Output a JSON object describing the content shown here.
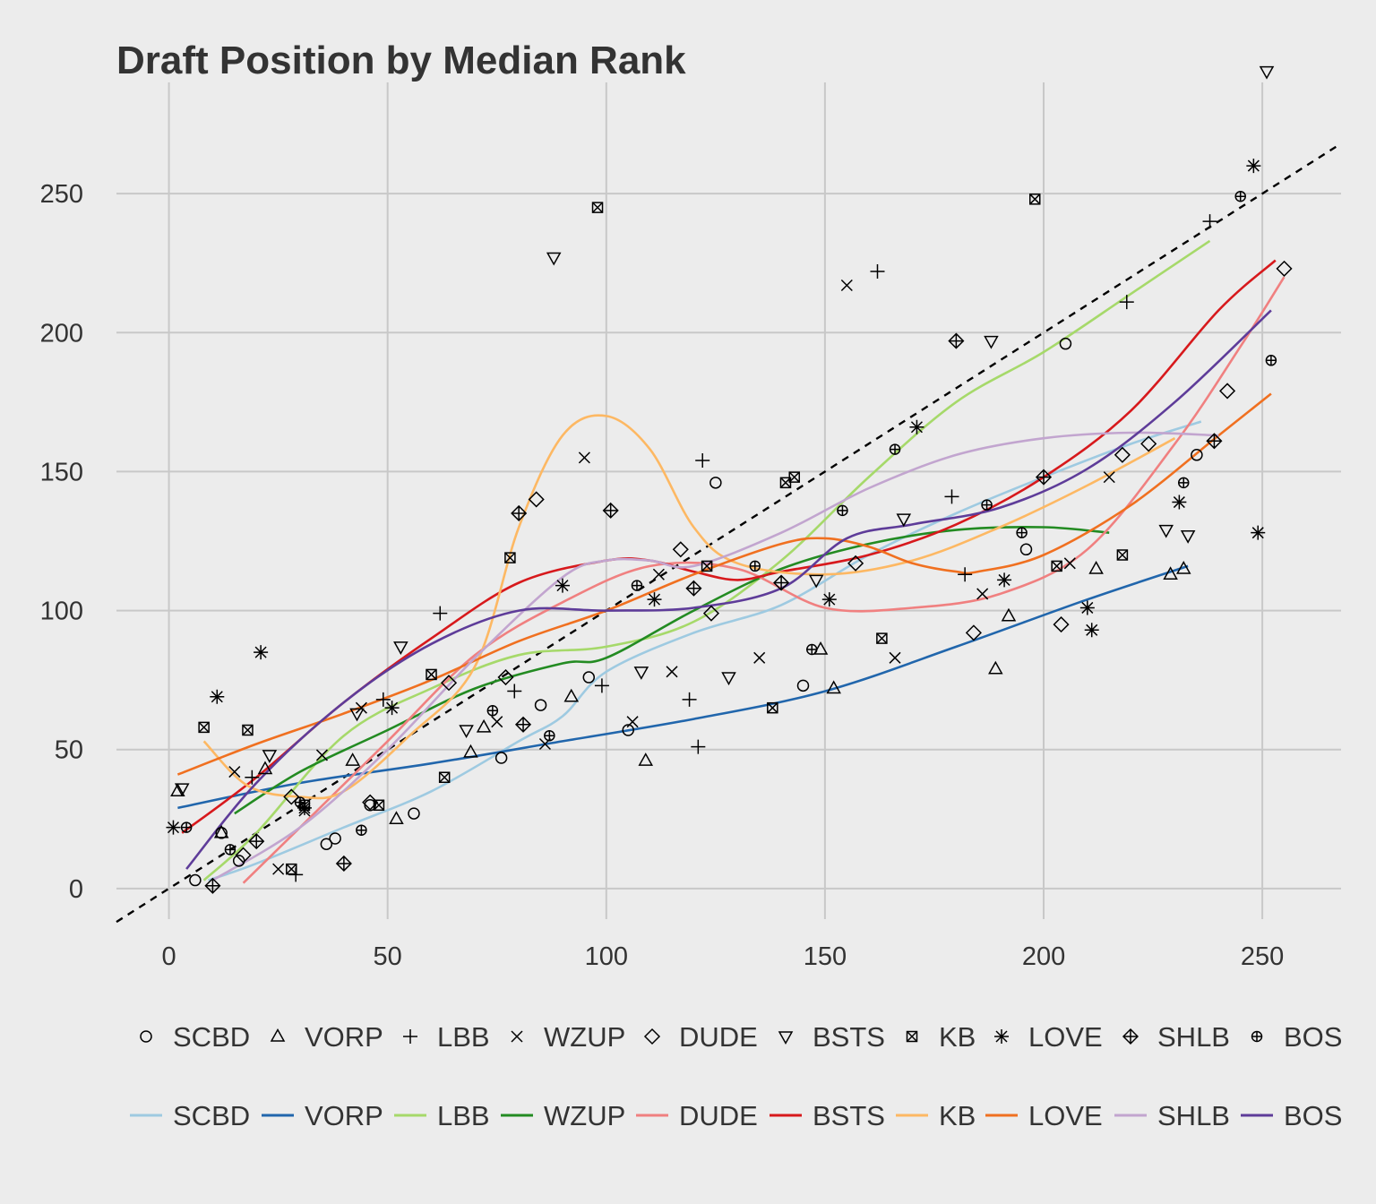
{
  "chart_data": {
    "type": "scatter",
    "title": "Draft Position by Median Rank",
    "xlabel": "",
    "ylabel": "",
    "xlim": [
      -12,
      268
    ],
    "ylim": [
      -11,
      290
    ],
    "x_ticks": [
      0,
      50,
      100,
      150,
      200,
      250
    ],
    "y_ticks": [
      0,
      50,
      100,
      150,
      200,
      250
    ],
    "grid": true,
    "legend_position": "bottom",
    "reference_line": {
      "style": "dashed",
      "color": "#000000",
      "slope": 1,
      "intercept": 0
    },
    "series": [
      {
        "name": "SCBD",
        "marker": "circle",
        "line_color": "#9ecae1",
        "points": [
          [
            6,
            3
          ],
          [
            12,
            20
          ],
          [
            16,
            10
          ],
          [
            36,
            16
          ],
          [
            38,
            18
          ],
          [
            46,
            30
          ],
          [
            56,
            27
          ],
          [
            76,
            47
          ],
          [
            85,
            66
          ],
          [
            96,
            76
          ],
          [
            105,
            57
          ],
          [
            125,
            146
          ],
          [
            145,
            73
          ],
          [
            196,
            122
          ],
          [
            205,
            196
          ],
          [
            235,
            156
          ]
        ],
        "smooth": [
          [
            9,
            3
          ],
          [
            20,
            9
          ],
          [
            40,
            22
          ],
          [
            60,
            35
          ],
          [
            80,
            53
          ],
          [
            90,
            62
          ],
          [
            100,
            78
          ],
          [
            120,
            92
          ],
          [
            140,
            102
          ],
          [
            160,
            120
          ],
          [
            180,
            135
          ],
          [
            200,
            148
          ],
          [
            220,
            160
          ],
          [
            236,
            168
          ]
        ]
      },
      {
        "name": "VORP",
        "marker": "triangle",
        "line_color": "#2166ac",
        "points": [
          [
            2,
            35
          ],
          [
            12,
            20
          ],
          [
            22,
            43
          ],
          [
            42,
            46
          ],
          [
            52,
            25
          ],
          [
            69,
            49
          ],
          [
            72,
            58
          ],
          [
            92,
            69
          ],
          [
            109,
            46
          ],
          [
            149,
            86
          ],
          [
            152,
            72
          ],
          [
            189,
            79
          ],
          [
            192,
            98
          ],
          [
            212,
            115
          ],
          [
            229,
            113
          ],
          [
            232,
            115
          ]
        ],
        "smooth": [
          [
            2,
            29
          ],
          [
            30,
            38
          ],
          [
            60,
            45
          ],
          [
            90,
            53
          ],
          [
            120,
            61
          ],
          [
            150,
            71
          ],
          [
            180,
            87
          ],
          [
            210,
            104
          ],
          [
            233,
            116
          ]
        ]
      },
      {
        "name": "LBB",
        "marker": "plus",
        "line_color": "#a6d96a",
        "points": [
          [
            19,
            40
          ],
          [
            29,
            5
          ],
          [
            49,
            68
          ],
          [
            62,
            99
          ],
          [
            79,
            71
          ],
          [
            99,
            73
          ],
          [
            119,
            68
          ],
          [
            121,
            51
          ],
          [
            122,
            154
          ],
          [
            162,
            222
          ],
          [
            179,
            141
          ],
          [
            182,
            113
          ],
          [
            219,
            211
          ],
          [
            238,
            240
          ]
        ],
        "smooth": [
          [
            8,
            3
          ],
          [
            20,
            20
          ],
          [
            40,
            55
          ],
          [
            60,
            72
          ],
          [
            80,
            84
          ],
          [
            100,
            87
          ],
          [
            120,
            96
          ],
          [
            140,
            118
          ],
          [
            160,
            148
          ],
          [
            180,
            175
          ],
          [
            200,
            193
          ],
          [
            220,
            214
          ],
          [
            238,
            233
          ]
        ]
      },
      {
        "name": "WZUP",
        "marker": "x",
        "line_color": "#238b22",
        "points": [
          [
            15,
            42
          ],
          [
            25,
            7
          ],
          [
            31,
            28
          ],
          [
            35,
            48
          ],
          [
            44,
            65
          ],
          [
            75,
            60
          ],
          [
            86,
            52
          ],
          [
            95,
            155
          ],
          [
            106,
            60
          ],
          [
            112,
            113
          ],
          [
            115,
            78
          ],
          [
            135,
            83
          ],
          [
            155,
            217
          ],
          [
            166,
            83
          ],
          [
            186,
            106
          ],
          [
            206,
            117
          ],
          [
            215,
            148
          ]
        ],
        "smooth": [
          [
            15,
            27
          ],
          [
            30,
            42
          ],
          [
            50,
            57
          ],
          [
            70,
            72
          ],
          [
            90,
            81
          ],
          [
            100,
            83
          ],
          [
            120,
            100
          ],
          [
            140,
            115
          ],
          [
            160,
            124
          ],
          [
            180,
            129
          ],
          [
            200,
            130
          ],
          [
            215,
            128
          ]
        ]
      },
      {
        "name": "DUDE",
        "marker": "diamond",
        "line_color": "#f08080",
        "points": [
          [
            17,
            12
          ],
          [
            28,
            33
          ],
          [
            46,
            31
          ],
          [
            64,
            74
          ],
          [
            77,
            76
          ],
          [
            84,
            140
          ],
          [
            117,
            122
          ],
          [
            124,
            99
          ],
          [
            157,
            117
          ],
          [
            184,
            92
          ],
          [
            204,
            95
          ],
          [
            218,
            156
          ],
          [
            224,
            160
          ],
          [
            242,
            179
          ],
          [
            255,
            223
          ]
        ],
        "smooth": [
          [
            17,
            2
          ],
          [
            30,
            22
          ],
          [
            50,
            53
          ],
          [
            70,
            84
          ],
          [
            90,
            103
          ],
          [
            110,
            116
          ],
          [
            130,
            115
          ],
          [
            150,
            101
          ],
          [
            170,
            101
          ],
          [
            190,
            106
          ],
          [
            210,
            122
          ],
          [
            230,
            160
          ],
          [
            245,
            195
          ],
          [
            255,
            220
          ]
        ]
      },
      {
        "name": "BSTS",
        "marker": "triangle-down",
        "line_color": "#d7191c",
        "points": [
          [
            3,
            36
          ],
          [
            23,
            48
          ],
          [
            43,
            63
          ],
          [
            53,
            87
          ],
          [
            68,
            57
          ],
          [
            88,
            227
          ],
          [
            108,
            78
          ],
          [
            128,
            76
          ],
          [
            148,
            111
          ],
          [
            168,
            133
          ],
          [
            188,
            197
          ],
          [
            228,
            129
          ],
          [
            233,
            127
          ],
          [
            251,
            294
          ]
        ],
        "smooth": [
          [
            3,
            20
          ],
          [
            20,
            40
          ],
          [
            40,
            67
          ],
          [
            60,
            90
          ],
          [
            80,
            110
          ],
          [
            100,
            118
          ],
          [
            110,
            118
          ],
          [
            120,
            114
          ],
          [
            130,
            111
          ],
          [
            140,
            114
          ],
          [
            160,
            120
          ],
          [
            180,
            131
          ],
          [
            200,
            148
          ],
          [
            220,
            172
          ],
          [
            240,
            208
          ],
          [
            253,
            226
          ]
        ]
      },
      {
        "name": "KB",
        "marker": "box-x",
        "line_color": "#fdb863",
        "points": [
          [
            8,
            58
          ],
          [
            18,
            57
          ],
          [
            28,
            7
          ],
          [
            31,
            30
          ],
          [
            48,
            30
          ],
          [
            60,
            77
          ],
          [
            63,
            40
          ],
          [
            78,
            119
          ],
          [
            98,
            245
          ],
          [
            123,
            116
          ],
          [
            138,
            65
          ],
          [
            141,
            146
          ],
          [
            143,
            148
          ],
          [
            163,
            90
          ],
          [
            198,
            248
          ],
          [
            203,
            116
          ],
          [
            218,
            120
          ]
        ],
        "smooth": [
          [
            8,
            53
          ],
          [
            18,
            37
          ],
          [
            30,
            33
          ],
          [
            40,
            35
          ],
          [
            55,
            55
          ],
          [
            70,
            80
          ],
          [
            80,
            130
          ],
          [
            90,
            163
          ],
          [
            100,
            170
          ],
          [
            110,
            158
          ],
          [
            120,
            130
          ],
          [
            130,
            117
          ],
          [
            150,
            113
          ],
          [
            170,
            118
          ],
          [
            190,
            130
          ],
          [
            210,
            145
          ],
          [
            230,
            162
          ]
        ]
      },
      {
        "name": "LOVE",
        "marker": "asterisk",
        "line_color": "#f07020",
        "points": [
          [
            1,
            22
          ],
          [
            11,
            69
          ],
          [
            21,
            85
          ],
          [
            31,
            29
          ],
          [
            51,
            65
          ],
          [
            90,
            109
          ],
          [
            111,
            104
          ],
          [
            151,
            104
          ],
          [
            171,
            166
          ],
          [
            191,
            111
          ],
          [
            210,
            101
          ],
          [
            211,
            93
          ],
          [
            231,
            139
          ],
          [
            248,
            260
          ],
          [
            249,
            128
          ]
        ],
        "smooth": [
          [
            2,
            41
          ],
          [
            20,
            52
          ],
          [
            40,
            63
          ],
          [
            60,
            75
          ],
          [
            80,
            89
          ],
          [
            100,
            100
          ],
          [
            120,
            113
          ],
          [
            140,
            124
          ],
          [
            150,
            126
          ],
          [
            160,
            123
          ],
          [
            170,
            117
          ],
          [
            180,
            114
          ],
          [
            185,
            114
          ],
          [
            200,
            120
          ],
          [
            220,
            138
          ],
          [
            240,
            163
          ],
          [
            252,
            178
          ]
        ]
      },
      {
        "name": "SHLB",
        "marker": "circle-plus",
        "line_color": "#c2a5cf",
        "points": [
          [
            10,
            1
          ],
          [
            20,
            17
          ],
          [
            40,
            9
          ],
          [
            80,
            135
          ],
          [
            81,
            59
          ],
          [
            101,
            136
          ],
          [
            120,
            108
          ],
          [
            140,
            110
          ],
          [
            180,
            197
          ],
          [
            200,
            148
          ],
          [
            239,
            161
          ]
        ],
        "smooth": [
          [
            10,
            3
          ],
          [
            30,
            22
          ],
          [
            50,
            50
          ],
          [
            70,
            83
          ],
          [
            90,
            112
          ],
          [
            100,
            118
          ],
          [
            110,
            118
          ],
          [
            120,
            116
          ],
          [
            140,
            128
          ],
          [
            160,
            144
          ],
          [
            180,
            156
          ],
          [
            200,
            162
          ],
          [
            220,
            164
          ],
          [
            240,
            163
          ]
        ]
      },
      {
        "name": "BOS",
        "marker": "circle-dot",
        "line_color": "#5e3c99",
        "points": [
          [
            4,
            22
          ],
          [
            14,
            14
          ],
          [
            30,
            31
          ],
          [
            44,
            21
          ],
          [
            74,
            64
          ],
          [
            87,
            55
          ],
          [
            107,
            109
          ],
          [
            134,
            116
          ],
          [
            147,
            86
          ],
          [
            154,
            136
          ],
          [
            166,
            158
          ],
          [
            187,
            138
          ],
          [
            195,
            128
          ],
          [
            232,
            146
          ],
          [
            245,
            249
          ],
          [
            252,
            190
          ]
        ],
        "smooth": [
          [
            4,
            7
          ],
          [
            20,
            38
          ],
          [
            40,
            67
          ],
          [
            60,
            88
          ],
          [
            80,
            100
          ],
          [
            100,
            100
          ],
          [
            120,
            101
          ],
          [
            140,
            108
          ],
          [
            155,
            126
          ],
          [
            170,
            131
          ],
          [
            190,
            137
          ],
          [
            210,
            151
          ],
          [
            230,
            175
          ],
          [
            252,
            208
          ]
        ]
      }
    ]
  }
}
